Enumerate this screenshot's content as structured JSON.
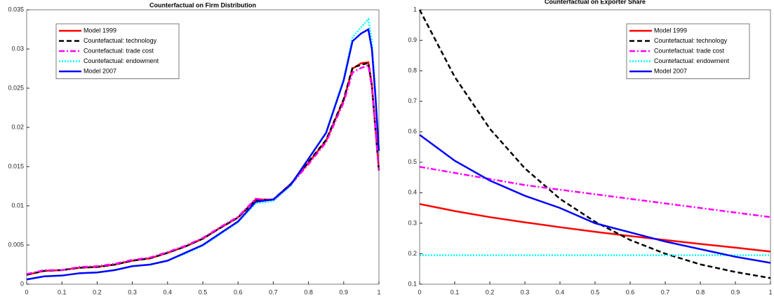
{
  "chart_data": [
    {
      "type": "line",
      "title": "Counterfactual on  Firm Distribution",
      "x": [
        0,
        0.05,
        0.1,
        0.15,
        0.2,
        0.25,
        0.3,
        0.35,
        0.4,
        0.45,
        0.5,
        0.55,
        0.6,
        0.65,
        0.7,
        0.75,
        0.8,
        0.85,
        0.9,
        0.925,
        0.95,
        0.97,
        0.98,
        0.99,
        1.0
      ],
      "xlim": [
        0,
        1
      ],
      "xticks": [
        0,
        0.1,
        0.2,
        0.3,
        0.4,
        0.5,
        0.6,
        0.7,
        0.8,
        0.9,
        1
      ],
      "ylim": [
        0,
        0.035
      ],
      "yticks": [
        0,
        0.005,
        0.01,
        0.015,
        0.02,
        0.025,
        0.03,
        0.035
      ],
      "legend": "upper left",
      "series": [
        {
          "name": "Model 1999",
          "color": "#ff0000",
          "style": "solid",
          "values": [
            0.0012,
            0.0017,
            0.0018,
            0.0021,
            0.0022,
            0.0025,
            0.003,
            0.0033,
            0.004,
            0.0048,
            0.0058,
            0.0072,
            0.0085,
            0.0108,
            0.0108,
            0.0128,
            0.0155,
            0.0183,
            0.0235,
            0.0275,
            0.0282,
            0.0283,
            0.0255,
            0.02,
            0.0145
          ]
        },
        {
          "name": "Countefactual: technology",
          "color": "#000000",
          "style": "dash",
          "values": [
            0.0012,
            0.0017,
            0.0018,
            0.0021,
            0.0022,
            0.0025,
            0.003,
            0.0033,
            0.004,
            0.0048,
            0.0058,
            0.0072,
            0.0085,
            0.0107,
            0.0108,
            0.0128,
            0.0156,
            0.0184,
            0.0236,
            0.0276,
            0.028,
            0.0282,
            0.0252,
            0.0198,
            0.0145
          ]
        },
        {
          "name": "Countefactual: trade cost",
          "color": "#ff00ff",
          "style": "dashdot",
          "values": [
            0.0013,
            0.0018,
            0.0018,
            0.0022,
            0.0023,
            0.0026,
            0.0031,
            0.0034,
            0.0041,
            0.0049,
            0.0059,
            0.0073,
            0.0086,
            0.0109,
            0.0107,
            0.0127,
            0.0153,
            0.0181,
            0.0232,
            0.027,
            0.0276,
            0.0279,
            0.025,
            0.0198,
            0.0145
          ]
        },
        {
          "name": "Countefactual: endowment",
          "color": "#00ffff",
          "style": "dot",
          "values": [
            0.0006,
            0.001,
            0.0011,
            0.0014,
            0.0015,
            0.0018,
            0.0023,
            0.0025,
            0.003,
            0.0039,
            0.0049,
            0.0064,
            0.0079,
            0.0103,
            0.0106,
            0.0126,
            0.016,
            0.0194,
            0.0262,
            0.0315,
            0.0328,
            0.0338,
            0.031,
            0.0245,
            0.017
          ]
        },
        {
          "name": "Model 2007",
          "color": "#0000ff",
          "style": "solid",
          "values": [
            0.0006,
            0.001,
            0.0011,
            0.0014,
            0.0015,
            0.0018,
            0.0023,
            0.0025,
            0.003,
            0.004,
            0.005,
            0.0065,
            0.008,
            0.0105,
            0.0108,
            0.0127,
            0.016,
            0.0193,
            0.026,
            0.031,
            0.032,
            0.0325,
            0.03,
            0.024,
            0.017
          ]
        }
      ]
    },
    {
      "type": "line",
      "title": "Counterfactual on Exporter Share",
      "x": [
        0,
        0.1,
        0.2,
        0.3,
        0.4,
        0.5,
        0.6,
        0.7,
        0.8,
        0.9,
        1
      ],
      "xlim": [
        0,
        1
      ],
      "xticks": [
        0,
        0.1,
        0.2,
        0.3,
        0.4,
        0.5,
        0.6,
        0.7,
        0.8,
        0.9,
        1
      ],
      "ylim": [
        0.1,
        1
      ],
      "yticks": [
        0.1,
        0.2,
        0.3,
        0.4,
        0.5,
        0.6,
        0.7,
        0.8,
        0.9,
        1
      ],
      "legend": "upper right",
      "series": [
        {
          "name": "Model 1999",
          "color": "#ff0000",
          "style": "solid",
          "values": [
            0.363,
            0.34,
            0.32,
            0.303,
            0.287,
            0.272,
            0.258,
            0.245,
            0.232,
            0.22,
            0.207
          ]
        },
        {
          "name": "Countefactual: technology",
          "color": "#000000",
          "style": "dash",
          "values": [
            1.0,
            0.78,
            0.61,
            0.48,
            0.38,
            0.305,
            0.245,
            0.2,
            0.165,
            0.14,
            0.12
          ]
        },
        {
          "name": "Countefactual: trade cost",
          "color": "#ff00ff",
          "style": "dashdot",
          "values": [
            0.485,
            0.465,
            0.445,
            0.425,
            0.41,
            0.395,
            0.38,
            0.365,
            0.35,
            0.335,
            0.32
          ]
        },
        {
          "name": "Countefactual: endowment",
          "color": "#00ffff",
          "style": "dot",
          "values": [
            0.195,
            0.195,
            0.195,
            0.195,
            0.195,
            0.195,
            0.195,
            0.195,
            0.195,
            0.195,
            0.195
          ]
        },
        {
          "name": "Model 2007",
          "color": "#0000ff",
          "style": "solid",
          "values": [
            0.59,
            0.505,
            0.44,
            0.39,
            0.35,
            0.3,
            0.27,
            0.24,
            0.215,
            0.19,
            0.17
          ]
        }
      ]
    }
  ]
}
